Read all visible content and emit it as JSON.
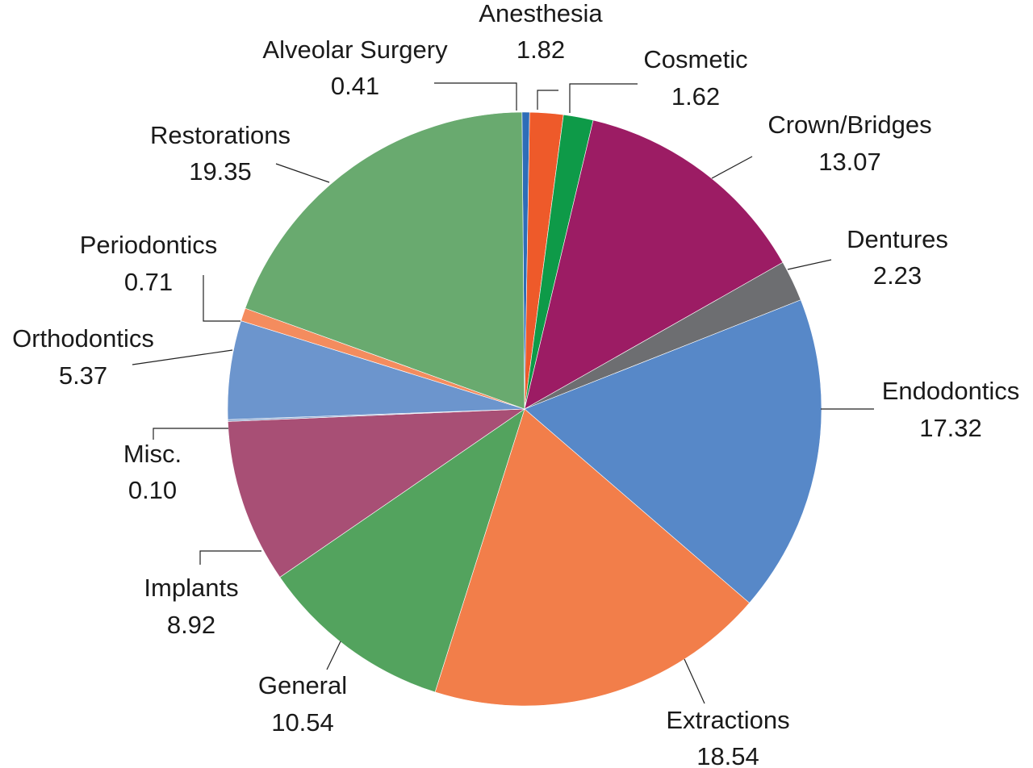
{
  "chart_data": {
    "type": "pie",
    "title": "",
    "slices": [
      {
        "label": "Alveolar Surgery",
        "value": 0.41,
        "display": "0.41",
        "color": "#2E6DB8"
      },
      {
        "label": "Anesthesia",
        "value": 1.82,
        "display": "1.82",
        "color": "#EE5A2A"
      },
      {
        "label": "Cosmetic",
        "value": 1.62,
        "display": "1.62",
        "color": "#0E9A48"
      },
      {
        "label": "Crown/Bridges",
        "value": 13.07,
        "display": "13.07",
        "color": "#9C1C64"
      },
      {
        "label": "Dentures",
        "value": 2.23,
        "display": "2.23",
        "color": "#6D6E71"
      },
      {
        "label": "Endodontics",
        "value": 17.32,
        "display": "17.32",
        "color": "#5788C8"
      },
      {
        "label": "Extractions",
        "value": 18.54,
        "display": "18.54",
        "color": "#F27E4A"
      },
      {
        "label": "General",
        "value": 10.54,
        "display": "10.54",
        "color": "#53A35E"
      },
      {
        "label": "Implants",
        "value": 8.92,
        "display": "8.92",
        "color": "#A84F75"
      },
      {
        "label": "Misc.",
        "value": 0.1,
        "display": "0.10",
        "color": "#8FA9CF"
      },
      {
        "label": "Orthodontics",
        "value": 5.37,
        "display": "5.37",
        "color": "#6C95CD"
      },
      {
        "label": "Periodontics",
        "value": 0.71,
        "display": "0.71",
        "color": "#F48C5E"
      },
      {
        "label": "Restorations",
        "value": 19.35,
        "display": "19.35",
        "color": "#69AA6F"
      }
    ]
  }
}
